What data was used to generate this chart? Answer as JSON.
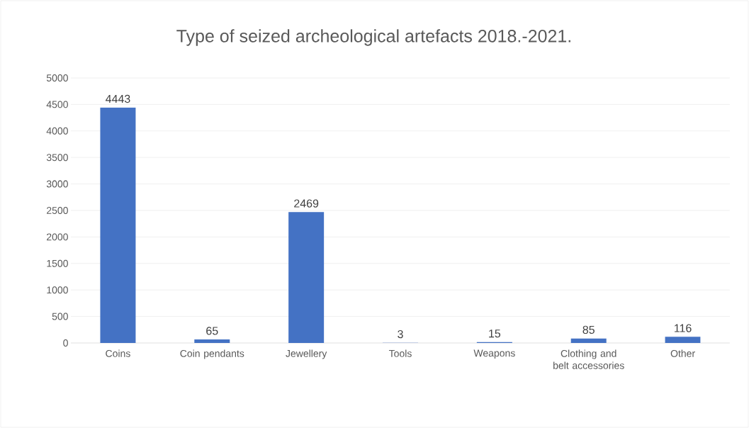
{
  "chart_data": {
    "type": "bar",
    "title": "Type of seized archeological artefacts 2018.-2021.",
    "categories": [
      "Coins",
      "Coin pendants",
      "Jewellery",
      "Tools",
      "Weapons",
      "Clothing and belt accessories",
      "Other"
    ],
    "values": [
      4443,
      65,
      2469,
      3,
      15,
      85,
      116
    ],
    "color": "#4472c4",
    "ylim": [
      0,
      5000
    ],
    "yticks": [
      0,
      500,
      1000,
      1500,
      2000,
      2500,
      3000,
      3500,
      4000,
      4500,
      5000
    ],
    "grid": "y",
    "data_labels": true
  }
}
